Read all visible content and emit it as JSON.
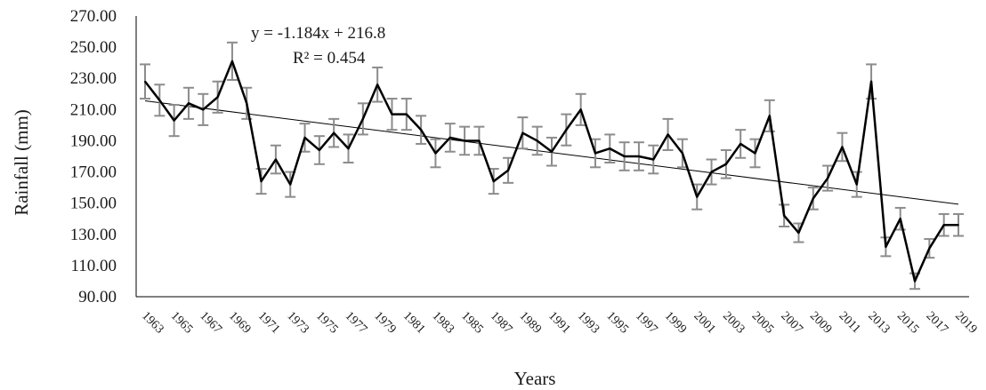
{
  "chart_data": {
    "type": "line",
    "title": "",
    "xlabel": "Years",
    "ylabel": "Rainfall (mm)",
    "ylim": [
      90,
      270
    ],
    "y_ticks": [
      "90.00",
      "110.00",
      "130.00",
      "150.00",
      "170.00",
      "190.00",
      "210.00",
      "230.00",
      "250.00",
      "270.00"
    ],
    "x_tick_labels": [
      "1963",
      "1965",
      "1967",
      "1969",
      "1971",
      "1973",
      "1975",
      "1977",
      "1979",
      "1981",
      "1983",
      "1985",
      "1987",
      "1989",
      "1991",
      "1993",
      "1995",
      "1997",
      "1999",
      "2001",
      "2003",
      "2005",
      "2007",
      "2009",
      "2011",
      "2013",
      "2015",
      "2017",
      "2019"
    ],
    "grid": false,
    "legend": "none",
    "series": [
      {
        "x": [
          1963,
          1964,
          1965,
          1966,
          1967,
          1968,
          1969,
          1970,
          1971,
          1972,
          1973,
          1974,
          1975,
          1976,
          1977,
          1978,
          1979,
          1980,
          1981,
          1982,
          1983,
          1984,
          1985,
          1986,
          1987,
          1988,
          1989,
          1990,
          1991,
          1992,
          1993,
          1994,
          1995,
          1996,
          1997,
          1998,
          1999,
          2000,
          2001,
          2002,
          2003,
          2004,
          2005,
          2006,
          2007,
          2008,
          2009,
          2010,
          2011,
          2012,
          2013,
          2014,
          2015,
          2016,
          2017,
          2018,
          2019
        ],
        "values": [
          228,
          216,
          203,
          214,
          210,
          218,
          241,
          214,
          164,
          178,
          162,
          192,
          184,
          195,
          185,
          204,
          226,
          207,
          207,
          197,
          182,
          192,
          190,
          190,
          164,
          171,
          195,
          190,
          183,
          197,
          210,
          182,
          185,
          180,
          180,
          178,
          194,
          182,
          154,
          170,
          175,
          188,
          182,
          206,
          142,
          131,
          153,
          166,
          186,
          162,
          228,
          122,
          140,
          100,
          121,
          136,
          136
        ],
        "error": [
          11,
          10,
          10,
          10,
          10,
          10,
          12,
          10,
          8,
          9,
          8,
          9,
          9,
          9,
          9,
          10,
          11,
          10,
          10,
          9,
          9,
          9,
          9,
          9,
          8,
          8,
          10,
          9,
          9,
          10,
          10,
          9,
          9,
          9,
          9,
          9,
          10,
          9,
          8,
          8,
          9,
          9,
          9,
          10,
          7,
          6,
          7,
          8,
          9,
          8,
          11,
          6,
          7,
          5,
          6,
          7,
          7
        ],
        "color": "#000000",
        "error_color": "#8c8c8c"
      }
    ],
    "trendline": {
      "equation": "y = -1.184x + 216.8",
      "r_squared": "R² = 0.454",
      "slope": -1.184,
      "intercept": 216.8
    }
  }
}
